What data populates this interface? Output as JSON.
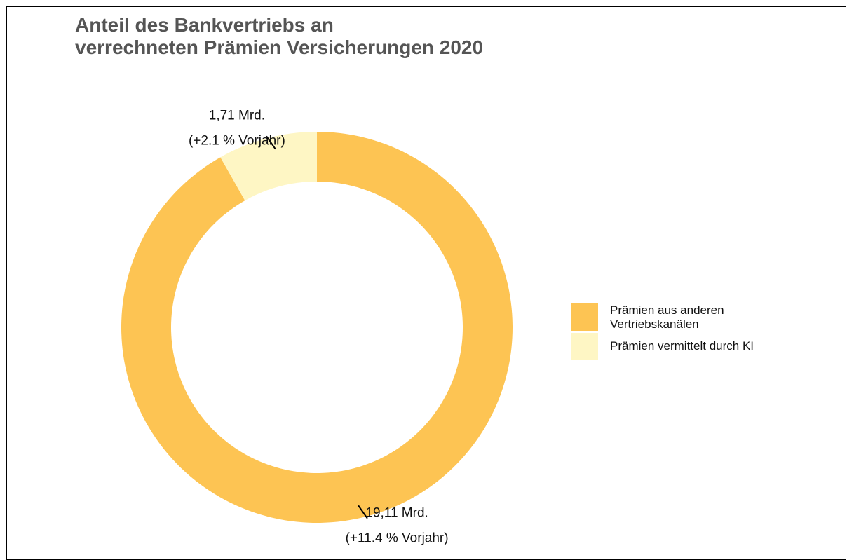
{
  "chart_data": {
    "type": "donut",
    "title": "Anteil des Bankvertriebs an\nverrechneten Prämien Versicherungen 2020",
    "categories": [
      "Prämien aus anderen Vertriebskanälen",
      "Prämien vermittelt durch KI"
    ],
    "values": [
      19.11,
      1.71
    ],
    "value_labels": [
      "19,11 Mrd.",
      "1,71 Mrd."
    ],
    "annotations": [
      "(+11.4 % Vorjahr)",
      "(+2.1 % Vorjahr)"
    ],
    "colors": [
      "#fdc453",
      "#fef6c4"
    ],
    "legend": "right"
  }
}
